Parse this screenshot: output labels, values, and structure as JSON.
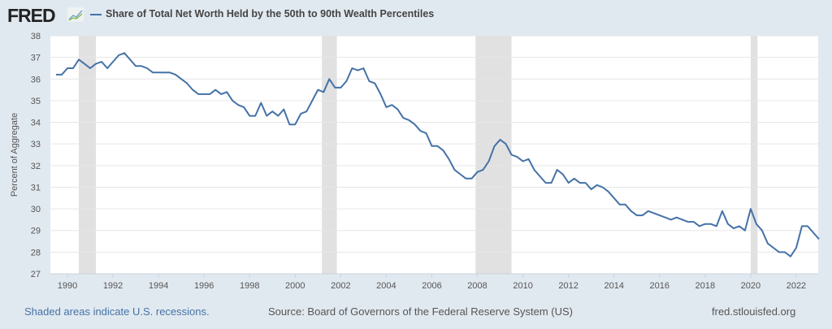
{
  "header": {
    "logo": "FRED",
    "title": "Share of Total Net Worth Held by the 50th to 90th Wealth Percentiles"
  },
  "footer": {
    "recession_note": "Shaded areas indicate U.S. recessions.",
    "source": "Source: Board of Governors of the Federal Reserve System (US)",
    "site": "fred.stlouisfed.org"
  },
  "colors": {
    "line": "#4572a7",
    "recession": "#e1e1e1",
    "grid": "#e6e6e6",
    "background": "#e1e9f0"
  },
  "chart_data": {
    "type": "line",
    "title": "Share of Total Net Worth Held by the 50th to 90th Wealth Percentiles",
    "xlabel": "",
    "ylabel": "Percent of Aggregate",
    "xlim": [
      1989.25,
      2023.0
    ],
    "ylim": [
      27,
      38
    ],
    "yticks": [
      27,
      28,
      29,
      30,
      31,
      32,
      33,
      34,
      35,
      36,
      37,
      38
    ],
    "xticks": [
      1990,
      1992,
      1994,
      1996,
      1998,
      2000,
      2002,
      2004,
      2006,
      2008,
      2010,
      2012,
      2014,
      2016,
      2018,
      2020,
      2022
    ],
    "recessions": [
      [
        1990.5,
        1991.25
      ],
      [
        2001.17,
        2001.83
      ],
      [
        2007.92,
        2009.5
      ],
      [
        2020.0,
        2020.3
      ]
    ],
    "series": [
      {
        "name": "Share of Total Net Worth Held by the 50th to 90th Wealth Percentiles",
        "x_start": 1989.5,
        "x_step": 0.25,
        "values": [
          36.2,
          36.2,
          36.5,
          36.5,
          36.9,
          36.7,
          36.5,
          36.7,
          36.8,
          36.5,
          36.8,
          37.1,
          37.2,
          36.9,
          36.6,
          36.6,
          36.5,
          36.3,
          36.3,
          36.3,
          36.3,
          36.2,
          36.0,
          35.8,
          35.5,
          35.3,
          35.3,
          35.3,
          35.5,
          35.3,
          35.4,
          35.0,
          34.8,
          34.7,
          34.3,
          34.3,
          34.9,
          34.3,
          34.5,
          34.3,
          34.6,
          33.9,
          33.9,
          34.4,
          34.5,
          35.0,
          35.5,
          35.4,
          36.0,
          35.6,
          35.6,
          35.9,
          36.5,
          36.4,
          36.5,
          35.9,
          35.8,
          35.3,
          34.7,
          34.8,
          34.6,
          34.2,
          34.1,
          33.9,
          33.6,
          33.5,
          32.9,
          32.9,
          32.7,
          32.3,
          31.8,
          31.6,
          31.4,
          31.4,
          31.7,
          31.8,
          32.2,
          32.9,
          33.2,
          33.0,
          32.5,
          32.4,
          32.2,
          32.3,
          31.8,
          31.5,
          31.2,
          31.2,
          31.8,
          31.6,
          31.2,
          31.4,
          31.2,
          31.2,
          30.9,
          31.1,
          31.0,
          30.8,
          30.5,
          30.2,
          30.2,
          29.9,
          29.7,
          29.7,
          29.9,
          29.8,
          29.7,
          29.6,
          29.5,
          29.6,
          29.5,
          29.4,
          29.4,
          29.2,
          29.3,
          29.3,
          29.2,
          29.9,
          29.3,
          29.1,
          29.2,
          29.0,
          30.0,
          29.3,
          29.0,
          28.4,
          28.2,
          28.0,
          28.0,
          27.8,
          28.2,
          29.2,
          29.2,
          28.9,
          28.6
        ]
      }
    ],
    "grid": true,
    "legend": "top-left"
  }
}
